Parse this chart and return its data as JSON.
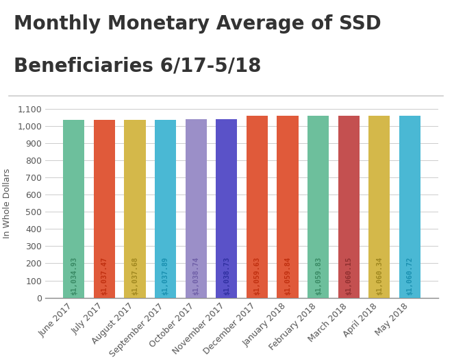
{
  "categories": [
    "June 2017",
    "July 2017",
    "August 2017",
    "September 2017",
    "October 2017",
    "November 2017",
    "December 2017",
    "January 2018",
    "February 2018",
    "March 2018",
    "April 2018",
    "May 2018"
  ],
  "values": [
    1034.93,
    1037.47,
    1037.68,
    1037.89,
    1038.74,
    1038.73,
    1059.63,
    1059.84,
    1059.83,
    1060.15,
    1060.34,
    1060.72
  ],
  "labels": [
    "$1,034.93",
    "$1,037.47",
    "$1,037.68",
    "$1,037.89",
    "$1,038.74",
    "$1,038.73",
    "$1,059.63",
    "$1,059.84",
    "$1,059.83",
    "$1,060.15",
    "$1,060.34",
    "$1,060.72"
  ],
  "bar_colors": [
    "#6dbf9c",
    "#e05a3a",
    "#d4b84a",
    "#4ab8d4",
    "#9b8fc8",
    "#5a52c8",
    "#e05a3a",
    "#e05a3a",
    "#6dbf9c",
    "#c45050",
    "#d4b84a",
    "#4ab8d4"
  ],
  "label_colors": [
    "#3a8a65",
    "#c03010",
    "#a08820",
    "#1a90b0",
    "#7060a8",
    "#3030a0",
    "#c03010",
    "#c03010",
    "#3a8a65",
    "#903030",
    "#a08820",
    "#1a90b0"
  ],
  "title_line1": "Monthly Monetary Average of SSD",
  "title_line2": "Beneficiaries 6/17-5/18",
  "ylabel": "In Whole Dollars",
  "ylim": [
    0,
    1100
  ],
  "yticks": [
    0,
    100,
    200,
    300,
    400,
    500,
    600,
    700,
    800,
    900,
    1000,
    1100
  ],
  "title_fontsize": 20,
  "label_fontsize": 7.5,
  "tick_fontsize": 9,
  "ylabel_fontsize": 9,
  "background_color": "#ffffff",
  "grid_color": "#cccccc",
  "title_color": "#333333"
}
